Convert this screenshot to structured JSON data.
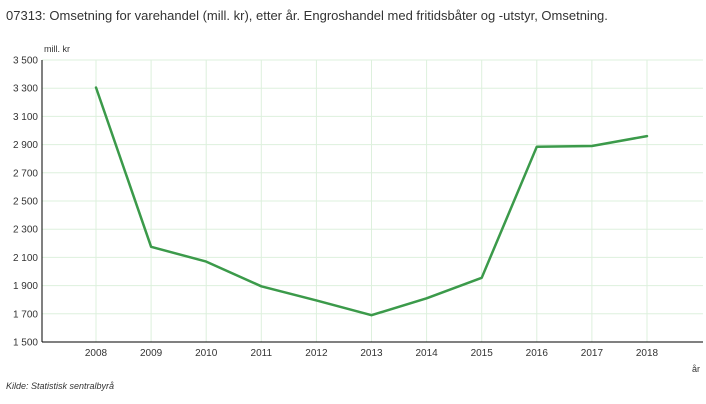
{
  "chart_data": {
    "type": "line",
    "title": "07313: Omsetning for varehandel (mill. kr), etter år. Engroshandel med fritidsbåter og -utstyr, Omsetning.",
    "ylabel": "mill. kr",
    "xlabel": "år",
    "categories": [
      "2008",
      "2009",
      "2010",
      "2011",
      "2012",
      "2013",
      "2014",
      "2015",
      "2016",
      "2017",
      "2018"
    ],
    "series": [
      {
        "values": [
          3305,
          2175,
          2070,
          1895,
          1795,
          1690,
          1810,
          1955,
          2885,
          2890,
          2960
        ]
      }
    ],
    "ylim": [
      1500,
      3500
    ],
    "yticks": [
      1500,
      1700,
      1900,
      2100,
      2300,
      2500,
      2700,
      2900,
      3100,
      3300,
      3500
    ],
    "ytick_labels": [
      "1 500",
      "1 700",
      "1 900",
      "2 100",
      "2 300",
      "2 500",
      "2 700",
      "2 900",
      "3 100",
      "3 300",
      "3 500"
    ],
    "grid": true,
    "legend": "none",
    "line_color": "#3b9a4a",
    "grid_color": "#ddf0dd",
    "source": "Kilde:  Statistisk sentralbyrå"
  }
}
